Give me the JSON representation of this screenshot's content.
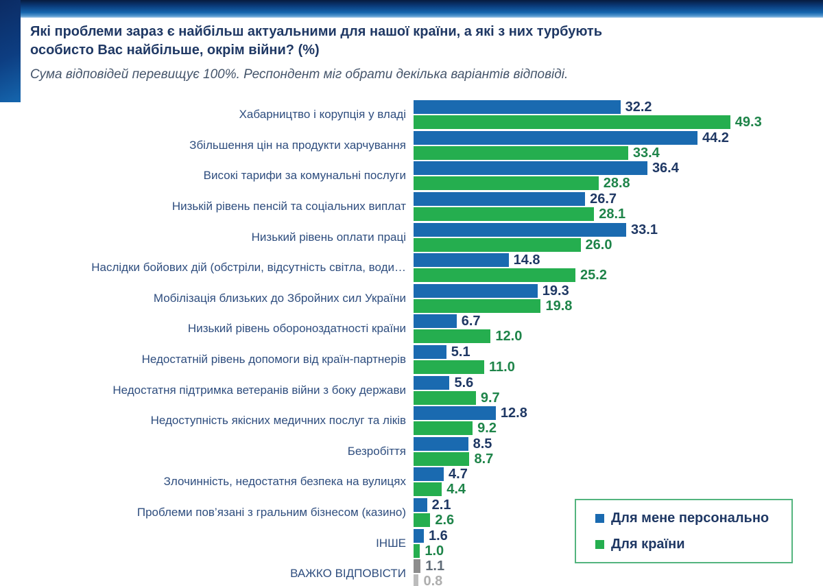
{
  "title_lines": [
    "Які проблеми зараз є найбільш актуальними для нашої країни, а які з них турбують",
    "особисто Вас найбільше, окрім війни? (%)"
  ],
  "subtitle": "Сума відповідей перевищує 100%. Респондент міг обрати декілька варіантів відповіді.",
  "legend": {
    "personal": "Для мене персонально",
    "country": "Для країни"
  },
  "colors": {
    "bar_personal": "#1a6ab0",
    "bar_country": "#25ae4f",
    "value_personal_text": "#1f3864",
    "value_country_text": "#1e8449",
    "title_text": "#1f3864",
    "subtitle_text": "#44546a",
    "category_text": "#2e4d7e",
    "legend_border": "#53b47e",
    "grey_bar_dark": "#8d8d8d",
    "grey_bar_light": "#bcbcbc",
    "grey_text_dark": "#5f6b77",
    "grey_text_light": "#aeaeae"
  },
  "chart_data": {
    "type": "bar",
    "orientation": "horizontal",
    "title": "Які проблеми зараз є найбільш актуальними для нашої країни, а які з них турбують особисто Вас найбільше, окрім війни? (%)",
    "subtitle": "Сума відповідей перевищує 100%. Респондент міг обрати декілька варіантів відповіді.",
    "xlim": [
      0,
      60
    ],
    "grid": false,
    "legend_position": "bottom-right",
    "categories": [
      "Хабарництво і корупція у владі",
      "Збільшення цін на продукти харчування",
      "Високі тарифи за комунальні послуги",
      "Низькій рівень пенсій та соціальних виплат",
      "Низький рівень оплати праці",
      "Наслідки бойових дій (обстріли, відсутність світла, води…",
      "Мобілізація близьких до Збройних сил України",
      "Низький рівень обороноздатності країни",
      "Недостатній рівень допомоги від країн-партнерів",
      "Недостатня підтримка ветеранів війни з боку держави",
      "Недоступність якісних медичних послуг та ліків",
      "Безробіття",
      "Злочинність, недостатня безпека на вулицях",
      "Проблеми пов’язані з гральним бізнесом (казино)",
      "ІНШЕ",
      "ВАЖКО ВІДПОВІСТИ"
    ],
    "series": [
      {
        "name": "Для мене персонально",
        "color": "#1a6ab0",
        "label_color": "#1f3864",
        "values": [
          32.2,
          44.2,
          36.4,
          26.7,
          33.1,
          14.8,
          19.3,
          6.7,
          5.1,
          5.6,
          12.8,
          8.5,
          4.7,
          2.1,
          1.6,
          1.1
        ],
        "value_labels": [
          "32.2",
          "44.2",
          "36.4",
          "26.7",
          "33.1",
          "14.8",
          "19.3",
          "6.7",
          "5.1",
          "5.6",
          "12.8",
          "8.5",
          "4.7",
          "2.1",
          "1.6",
          "1.1"
        ]
      },
      {
        "name": "Для країни",
        "color": "#25ae4f",
        "label_color": "#1e8449",
        "values": [
          49.3,
          33.4,
          28.8,
          28.1,
          26.0,
          25.2,
          19.8,
          12.0,
          11.0,
          9.7,
          9.2,
          8.7,
          4.4,
          2.6,
          1.0,
          0.8
        ],
        "value_labels": [
          "49.3",
          "33.4",
          "28.8",
          "28.1",
          "26.0",
          "25.2",
          "19.8",
          "12.0",
          "11.0",
          "9.7",
          "9.2",
          "8.7",
          "4.4",
          "2.6",
          "1.0",
          "0.8"
        ]
      }
    ],
    "grey_row_index": 15,
    "grey_bar_colors": [
      "#8d8d8d",
      "#bcbcbc"
    ],
    "grey_text_colors": [
      "#5f6b77",
      "#aeaeae"
    ]
  }
}
